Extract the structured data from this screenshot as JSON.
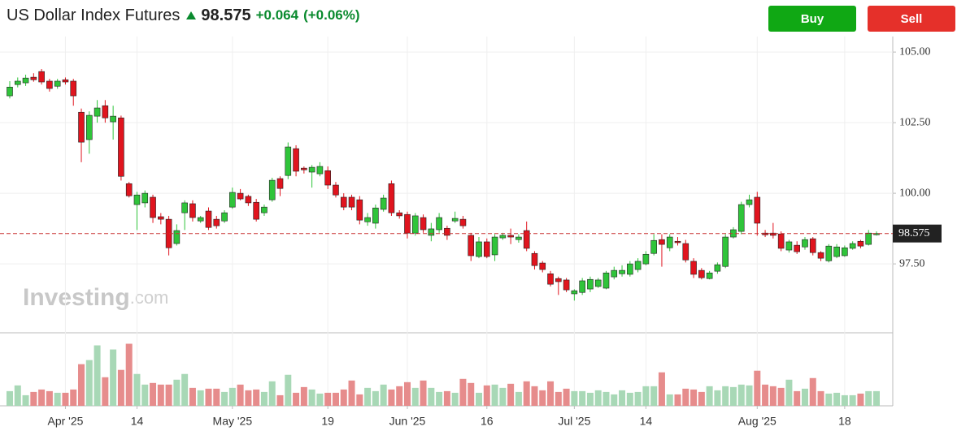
{
  "header": {
    "title": "US Dollar Index Futures",
    "change": "+0.064",
    "change_pct": "(+0.06%)",
    "buttons": [
      "Buy",
      "Sell"
    ]
  },
  "watermark": {
    "brand": "Investing",
    "suffix": ".com"
  },
  "chart_data": {
    "type": "candlestick",
    "last_price": 98.575,
    "categories": [
      null,
      null,
      null,
      null,
      null,
      null,
      null,
      "Apr '25",
      null,
      null,
      null,
      null,
      null,
      null,
      null,
      null,
      "14",
      null,
      null,
      null,
      null,
      null,
      null,
      null,
      null,
      null,
      null,
      null,
      "May '25",
      null,
      null,
      null,
      null,
      null,
      null,
      null,
      null,
      null,
      null,
      null,
      "19",
      null,
      null,
      null,
      null,
      null,
      null,
      null,
      null,
      null,
      "Jun '25",
      null,
      null,
      null,
      null,
      null,
      null,
      null,
      null,
      null,
      "16",
      null,
      null,
      null,
      null,
      null,
      null,
      null,
      null,
      null,
      null,
      "Jul '25",
      null,
      null,
      null,
      null,
      null,
      null,
      null,
      null,
      "14",
      null,
      null,
      null,
      null,
      null,
      null,
      null,
      null,
      null,
      null,
      null,
      null,
      null,
      "Aug '25",
      null,
      null,
      null,
      null,
      null,
      null,
      null,
      null,
      null,
      null,
      "18",
      null,
      null,
      null,
      null
    ],
    "open": [
      103.45,
      103.85,
      103.91,
      104.11,
      104.31,
      103.97,
      103.79,
      104.02,
      103.97,
      102.87,
      101.9,
      102.73,
      103.1,
      102.53,
      102.67,
      100.34,
      99.6,
      99.66,
      99.86,
      99.17,
      99.08,
      98.22,
      99.31,
      99.63,
      99.02,
      99.37,
      99.08,
      99.02,
      99.51,
      100.0,
      99.89,
      99.68,
      99.31,
      99.77,
      100.52,
      100.63,
      101.58,
      100.89,
      100.75,
      100.69,
      100.8,
      100.29,
      99.86,
      99.86,
      99.77,
      98.99,
      98.94,
      99.43,
      100.34,
      99.31,
      99.25,
      98.59,
      99.14,
      98.51,
      98.71,
      98.76,
      99.02,
      99.08,
      98.51,
      97.76,
      98.28,
      97.82,
      98.42,
      98.51,
      98.36,
      98.68,
      97.87,
      97.53,
      97.15,
      96.98,
      96.93,
      96.44,
      96.49,
      96.61,
      96.7,
      96.64,
      97.04,
      97.15,
      97.13,
      97.3,
      97.5,
      97.87,
      98.36,
      98.07,
      98.3,
      98.22,
      97.59,
      97.27,
      96.98,
      97.24,
      97.41,
      98.45,
      98.65,
      99.6,
      99.86,
      98.59,
      98.59,
      98.56,
      97.99,
      98.16,
      98.1,
      98.39,
      97.9,
      97.61,
      97.76,
      97.79,
      98.05,
      98.3,
      98.19,
      98.56
    ],
    "high": [
      103.97,
      104.1,
      104.2,
      104.25,
      104.4,
      104.05,
      104.05,
      104.1,
      104.05,
      103.0,
      102.9,
      103.3,
      103.3,
      103.1,
      102.75,
      100.4,
      100.05,
      100.1,
      99.95,
      99.3,
      99.2,
      98.9,
      99.75,
      99.75,
      99.2,
      99.5,
      99.2,
      99.4,
      100.2,
      100.15,
      99.95,
      99.8,
      99.6,
      100.55,
      100.6,
      101.8,
      101.7,
      100.95,
      101.0,
      101.1,
      100.95,
      100.4,
      100.0,
      99.95,
      99.9,
      99.3,
      99.6,
      99.95,
      100.45,
      99.4,
      99.35,
      99.3,
      99.25,
      98.95,
      99.3,
      98.85,
      99.35,
      99.2,
      98.6,
      98.45,
      98.4,
      98.55,
      98.6,
      98.75,
      98.55,
      99.0,
      97.95,
      97.6,
      97.25,
      97.05,
      97.0,
      96.6,
      97.0,
      97.05,
      97.0,
      97.25,
      97.4,
      97.45,
      97.6,
      97.7,
      97.95,
      98.55,
      98.55,
      98.55,
      98.45,
      98.35,
      97.7,
      97.35,
      97.25,
      97.55,
      98.55,
      98.8,
      99.7,
      99.95,
      100.05,
      98.7,
      98.95,
      98.65,
      98.35,
      98.3,
      98.45,
      98.45,
      97.95,
      98.2,
      98.2,
      98.15,
      98.3,
      98.35,
      98.7,
      98.65
    ],
    "low": [
      103.36,
      103.75,
      103.8,
      103.95,
      103.85,
      103.6,
      103.7,
      103.85,
      103.1,
      101.1,
      101.4,
      102.5,
      102.5,
      101.9,
      100.45,
      99.85,
      98.7,
      99.5,
      98.95,
      98.9,
      97.8,
      98.15,
      98.7,
      99.0,
      98.95,
      98.7,
      98.75,
      98.95,
      99.45,
      99.75,
      99.55,
      99.0,
      99.2,
      99.7,
      99.9,
      100.5,
      100.6,
      100.7,
      100.2,
      100.6,
      100.15,
      99.85,
      99.4,
      99.4,
      98.9,
      98.85,
      98.75,
      99.35,
      99.2,
      99.1,
      98.4,
      98.5,
      98.6,
      98.3,
      98.6,
      98.35,
      98.95,
      98.75,
      97.6,
      97.7,
      97.7,
      97.6,
      98.35,
      98.2,
      98.25,
      97.95,
      97.3,
      97.2,
      96.7,
      96.4,
      96.5,
      96.2,
      96.4,
      96.5,
      96.65,
      96.6,
      96.95,
      97.05,
      97.05,
      97.2,
      97.45,
      97.8,
      97.4,
      97.95,
      98.15,
      97.55,
      97.0,
      96.95,
      96.95,
      97.15,
      97.35,
      98.4,
      98.55,
      99.5,
      98.5,
      98.45,
      98.4,
      97.95,
      97.9,
      97.85,
      98.0,
      97.8,
      97.6,
      97.55,
      97.7,
      97.75,
      98.0,
      98.05,
      98.15,
      98.5
    ],
    "close": [
      103.76,
      103.97,
      104.08,
      104.02,
      103.94,
      103.71,
      103.97,
      103.94,
      103.45,
      101.81,
      102.76,
      103.02,
      102.67,
      102.73,
      100.6,
      99.91,
      99.94,
      100.0,
      99.14,
      99.08,
      98.07,
      98.68,
      99.66,
      99.14,
      99.14,
      98.79,
      98.85,
      99.31,
      100.03,
      99.8,
      99.66,
      99.08,
      99.51,
      100.46,
      100.17,
      101.64,
      100.78,
      100.83,
      100.92,
      100.95,
      100.29,
      99.94,
      99.51,
      99.51,
      99.05,
      99.14,
      99.48,
      99.83,
      99.31,
      99.2,
      98.59,
      99.2,
      98.71,
      98.74,
      99.14,
      98.51,
      99.11,
      98.85,
      97.79,
      98.28,
      97.76,
      98.45,
      98.51,
      98.45,
      98.45,
      98.05,
      97.44,
      97.3,
      96.78,
      96.87,
      96.58,
      96.55,
      96.9,
      96.95,
      96.93,
      97.18,
      97.27,
      97.27,
      97.5,
      97.59,
      97.84,
      98.33,
      98.19,
      98.45,
      98.25,
      97.64,
      97.13,
      97.01,
      97.18,
      97.47,
      98.45,
      98.71,
      99.6,
      99.77,
      98.94,
      98.53,
      98.51,
      98.05,
      98.28,
      97.93,
      98.36,
      97.9,
      97.7,
      98.13,
      98.1,
      98.07,
      98.22,
      98.13,
      98.59,
      98.575
    ],
    "volume": [
      18,
      25,
      13,
      17,
      20,
      18,
      16,
      16,
      20,
      51,
      56,
      74,
      35,
      69,
      44,
      76,
      39,
      26,
      28,
      26,
      26,
      32,
      39,
      22,
      19,
      21,
      21,
      17,
      22,
      26,
      19,
      20,
      17,
      30,
      13,
      38,
      16,
      23,
      20,
      15,
      16,
      16,
      20,
      31,
      14,
      22,
      18,
      26,
      20,
      24,
      29,
      22,
      31,
      22,
      17,
      18,
      16,
      33,
      28,
      16,
      25,
      26,
      22,
      27,
      17,
      30,
      24,
      19,
      30,
      17,
      21,
      18,
      18,
      16,
      19,
      17,
      14,
      19,
      16,
      17,
      24,
      24,
      41,
      14,
      14,
      21,
      20,
      17,
      24,
      19,
      24,
      23,
      26,
      25,
      43,
      26,
      24,
      22,
      32,
      18,
      21,
      34,
      18,
      15,
      16,
      13,
      13,
      15,
      18,
      18
    ],
    "up_color": "#2fc43a",
    "down_color": "#e0141e",
    "volume_up_color": "#a8d8b6",
    "volume_down_color": "#e68c8c",
    "last_line_color": "#c83232",
    "ylim": [
      95.06,
      105.55
    ],
    "yticks": [
      {
        "value": 97.5,
        "label": "97.50"
      },
      {
        "value": 100,
        "label": "100.00"
      },
      {
        "value": 102.5,
        "label": "102.50"
      },
      {
        "value": 105,
        "label": "105.00"
      }
    ],
    "grid": true
  }
}
